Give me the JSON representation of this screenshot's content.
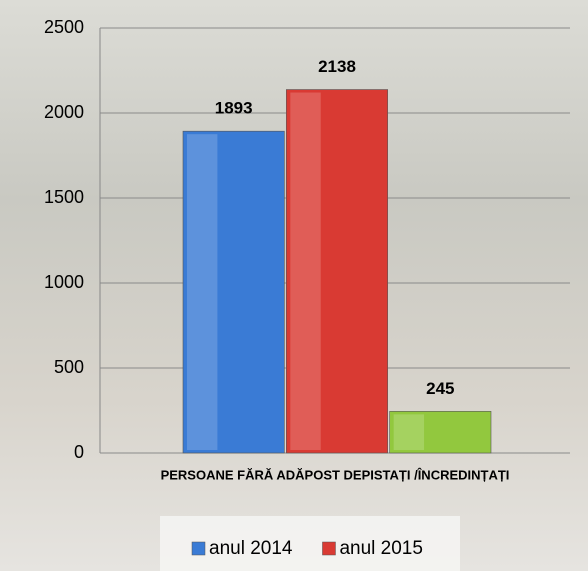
{
  "chart_data": {
    "type": "bar",
    "categories": [
      "PERSOANE FĂRĂ ADĂPOST  DEPISTAȚI /ÎNCREDINȚAȚI"
    ],
    "series": [
      {
        "name": "anul 2014",
        "color": "#3a7bd5",
        "values": [
          1893
        ]
      },
      {
        "name": "anul 2015",
        "color": "#d93a33",
        "values": [
          2138
        ]
      },
      {
        "color": "#92c83e",
        "values": [
          245
        ]
      }
    ],
    "ylim": [
      0,
      2500
    ],
    "yticks": [
      0,
      500,
      1000,
      1500,
      2000,
      2500
    ],
    "grid": true,
    "legend": "bottom"
  }
}
